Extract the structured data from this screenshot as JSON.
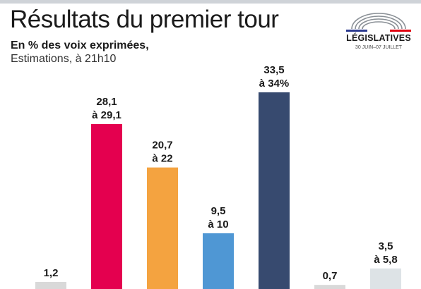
{
  "header": {
    "title": "Résultats du premier tour",
    "subtitle": "En % des voix exprimées,",
    "note": "Estimations, à 21h10"
  },
  "logo": {
    "name": "LÉGISLATIVES",
    "dates": "30 JUIN–07 JUILLET",
    "colors": {
      "blue": "#2b3a8f",
      "red": "#e1000f",
      "grey": "#8a9096"
    }
  },
  "chart_data": {
    "type": "bar",
    "categories": [
      "",
      "",
      "",
      "",
      "",
      "",
      ""
    ],
    "series": [
      {
        "low": [
          1.2,
          28.1,
          20.7,
          9.5,
          33.5,
          0.7,
          3.5
        ],
        "high": [
          null,
          29.1,
          22,
          10,
          34,
          null,
          5.8
        ],
        "labels": [
          [
            "1,2",
            ""
          ],
          [
            "28,1",
            "à 29,1"
          ],
          [
            "20,7",
            "à 22"
          ],
          [
            "9,5",
            "à 10"
          ],
          [
            "33,5",
            "à 34%"
          ],
          [
            "0,7",
            ""
          ],
          [
            "3,5",
            "à 5,8"
          ]
        ],
        "colors": [
          "#d9d9d9",
          "#e4004f",
          "#f4a340",
          "#4f97d4",
          "#374a6f",
          "#d9d9d9",
          "#dde3e6"
        ]
      }
    ],
    "ylim": [
      0,
      36
    ]
  }
}
